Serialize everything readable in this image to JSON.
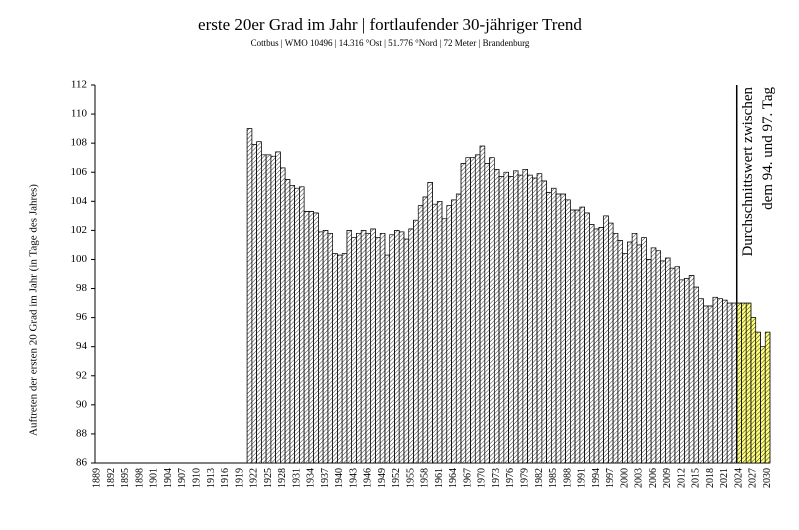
{
  "chart_data": {
    "type": "bar",
    "title": "erste 20er Grad im Jahr | fortlaufender 30-jähriger Trend",
    "subtitle": "Cottbus | WMO 10496 | 14.316 °Ost | 51.776 °Nord | 72 Meter | Brandenburg",
    "y_label": "Auftreten der ersten 20 Grad im Jahr (in Tage des Jahres)",
    "annotations": [
      "Durchschnittswert zwischen",
      "dem 94. und 97. Tag"
    ],
    "ylim": [
      86,
      112
    ],
    "yticks": [
      86,
      88,
      90,
      92,
      94,
      96,
      98,
      100,
      102,
      104,
      106,
      108,
      110,
      112
    ],
    "categories": [
      "1889",
      null,
      null,
      "1892",
      null,
      null,
      "1895",
      null,
      null,
      "1898",
      null,
      null,
      "1901",
      null,
      null,
      "1904",
      null,
      null,
      "1907",
      null,
      null,
      "1910",
      null,
      null,
      "1913",
      null,
      null,
      "1916",
      null,
      null,
      "1919",
      null,
      null,
      "1922",
      null,
      null,
      "1925",
      null,
      null,
      "1928",
      null,
      null,
      "1931",
      null,
      null,
      "1934",
      null,
      null,
      "1937",
      null,
      null,
      "1940",
      null,
      null,
      "1943",
      null,
      null,
      "1946",
      null,
      null,
      "1949",
      null,
      null,
      "1952",
      null,
      null,
      "1955",
      null,
      null,
      "1958",
      null,
      null,
      "1961",
      null,
      null,
      "1964",
      null,
      null,
      "1967",
      null,
      null,
      "1970",
      null,
      null,
      "1973",
      null,
      null,
      "1976",
      null,
      null,
      "1979",
      null,
      null,
      "1982",
      null,
      null,
      "1985",
      null,
      null,
      "1988",
      null,
      null,
      "1991",
      null,
      null,
      "1994",
      null,
      null,
      "1997",
      null,
      null,
      "2000",
      null,
      null,
      "2003",
      null,
      null,
      "2006",
      null,
      null,
      "2009",
      null,
      null,
      "2012",
      null,
      null,
      "2015",
      null,
      null,
      "2018",
      null,
      null,
      "2021",
      null,
      null,
      "2024",
      null,
      null,
      "2027",
      null,
      null,
      "2030"
    ],
    "series": [
      {
        "color": "#ffffff",
        "pattern": "hatch",
        "values": [
          null,
          null,
          null,
          null,
          null,
          null,
          null,
          null,
          null,
          null,
          null,
          null,
          null,
          null,
          null,
          null,
          null,
          null,
          null,
          null,
          null,
          null,
          null,
          null,
          null,
          null,
          null,
          null,
          null,
          null,
          null,
          null,
          109.0,
          107.9,
          108.1,
          107.2,
          107.2,
          107.1,
          107.4,
          106.3,
          105.5,
          105.1,
          104.9,
          105.0,
          103.3,
          103.3,
          103.2,
          101.9,
          102.0,
          101.8,
          100.4,
          100.3,
          100.4,
          102.0,
          101.5,
          101.8,
          102.0,
          101.8,
          102.1,
          101.5,
          101.8,
          100.3,
          101.7,
          102.0,
          101.9,
          101.4,
          102.1,
          102.7,
          103.7,
          104.3,
          105.3,
          103.8,
          104.0,
          102.8,
          103.7,
          104.1,
          104.5,
          106.6,
          107.0,
          107.0,
          107.2,
          107.8,
          106.6,
          107.0,
          106.2,
          105.7,
          106.0,
          105.7,
          106.1,
          105.8,
          106.2,
          105.8,
          105.6,
          105.9,
          105.4,
          104.6,
          104.9,
          104.5,
          104.5,
          104.1,
          103.4,
          103.4,
          103.6,
          103.2,
          102.4,
          102.1,
          102.2,
          103.0,
          102.5,
          101.8,
          101.3,
          100.4,
          101.2,
          101.8,
          101.0,
          101.5,
          100.0,
          100.8,
          100.6,
          99.9,
          100.1,
          99.4,
          99.5,
          98.6,
          98.7,
          98.9,
          98.1,
          97.3,
          96.8,
          96.8,
          97.4,
          97.3,
          97.2,
          97.0,
          97.0,
          null,
          null,
          null,
          null,
          null,
          null,
          null
        ]
      },
      {
        "color": "#ffff80",
        "pattern": "hatch",
        "values": [
          null,
          null,
          null,
          null,
          null,
          null,
          null,
          null,
          null,
          null,
          null,
          null,
          null,
          null,
          null,
          null,
          null,
          null,
          null,
          null,
          null,
          null,
          null,
          null,
          null,
          null,
          null,
          null,
          null,
          null,
          null,
          null,
          null,
          null,
          null,
          null,
          null,
          null,
          null,
          null,
          null,
          null,
          null,
          null,
          null,
          null,
          null,
          null,
          null,
          null,
          null,
          null,
          null,
          null,
          null,
          null,
          null,
          null,
          null,
          null,
          null,
          null,
          null,
          null,
          null,
          null,
          null,
          null,
          null,
          null,
          null,
          null,
          null,
          null,
          null,
          null,
          null,
          null,
          null,
          null,
          null,
          null,
          null,
          null,
          null,
          null,
          null,
          null,
          null,
          null,
          null,
          null,
          null,
          null,
          null,
          null,
          null,
          null,
          null,
          null,
          null,
          null,
          null,
          null,
          null,
          null,
          null,
          null,
          null,
          null,
          null,
          null,
          null,
          null,
          null,
          null,
          null,
          null,
          null,
          null,
          null,
          null,
          null,
          null,
          null,
          null,
          null,
          null,
          null,
          null,
          null,
          null,
          null,
          null,
          null,
          97,
          97,
          97,
          96,
          95,
          94,
          95
        ]
      }
    ]
  }
}
